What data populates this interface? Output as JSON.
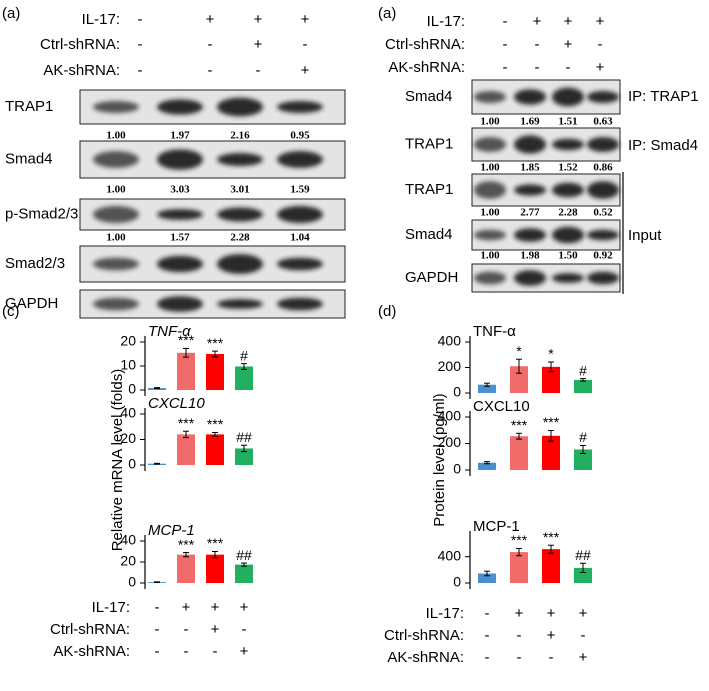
{
  "panel_a": {
    "label": "(a)",
    "conditions": [
      {
        "name": "IL-17:",
        "signs": [
          "-",
          "+",
          "+",
          "+"
        ]
      },
      {
        "name": "Ctrl-shRNA:",
        "signs": [
          "-",
          "-",
          "+",
          "-"
        ]
      },
      {
        "name": "AK-shRNA:",
        "signs": [
          "-",
          "-",
          "-",
          "+"
        ]
      }
    ],
    "blots": [
      {
        "name": "TRAP1",
        "quant": [
          "1.00",
          "1.97",
          "2.16",
          "0.95"
        ]
      },
      {
        "name": "Smad4",
        "quant": [
          "1.00",
          "3.03",
          "3.01",
          "1.59"
        ]
      },
      {
        "name": "p-Smad2/3",
        "quant": [
          "1.00",
          "1.57",
          "2.28",
          "1.04"
        ]
      },
      {
        "name": "Smad2/3"
      },
      {
        "name": "GAPDH"
      }
    ]
  },
  "panel_b": {
    "label": "(a)",
    "conditions": [
      {
        "name": "IL-17:",
        "signs": [
          "-",
          "+",
          "+",
          "+"
        ]
      },
      {
        "name": "Ctrl-shRNA:",
        "signs": [
          "-",
          "-",
          "+",
          "-"
        ]
      },
      {
        "name": "AK-shRNA:",
        "signs": [
          "-",
          "-",
          "-",
          "+"
        ]
      }
    ],
    "blots": [
      {
        "name": "Smad4",
        "quant": [
          "1.00",
          "1.69",
          "1.51",
          "0.63"
        ]
      },
      {
        "name": "TRAP1",
        "quant": [
          "1.00",
          "1.85",
          "1.52",
          "0.86"
        ]
      },
      {
        "name": "TRAP1",
        "quant": [
          "1.00",
          "2.77",
          "2.28",
          "0.52"
        ]
      },
      {
        "name": "Smad4",
        "quant": [
          "1.00",
          "1.98",
          "1.50",
          "0.92"
        ]
      },
      {
        "name": "GAPDH"
      }
    ],
    "groups": [
      "IP: TRAP1",
      "IP: Smad4",
      "Input"
    ]
  },
  "panel_c": {
    "label": "(c)",
    "y_label": "Relative mRNA level (folds)",
    "conditions": [
      {
        "name": "IL-17:",
        "signs": [
          "-",
          "+",
          "+",
          "+"
        ]
      },
      {
        "name": "Ctrl-shRNA:",
        "signs": [
          "-",
          "-",
          "+",
          "-"
        ]
      },
      {
        "name": "AK-shRNA:",
        "signs": [
          "-",
          "-",
          "-",
          "+"
        ]
      }
    ]
  },
  "panel_d": {
    "label": "(d)",
    "y_label": "Protein level (pg/ml)",
    "conditions": [
      {
        "name": "IL-17:",
        "signs": [
          "-",
          "+",
          "+",
          "+"
        ]
      },
      {
        "name": "Ctrl-shRNA:",
        "signs": [
          "-",
          "-",
          "+",
          "-"
        ]
      },
      {
        "name": "AK-shRNA:",
        "signs": [
          "-",
          "-",
          "-",
          "+"
        ]
      }
    ]
  },
  "chart_data": [
    {
      "type": "bar",
      "title": "TNF-α",
      "title_italic": true,
      "categories": [
        null,
        null,
        null,
        null
      ],
      "values": [
        0.8,
        15.5,
        15,
        9.8
      ],
      "errors": [
        0.2,
        1.8,
        1.2,
        1.2
      ],
      "annotations": [
        null,
        "***",
        "***",
        "#"
      ],
      "colors": [
        "#4a90d0",
        "#f26b6b",
        "#ff0000",
        "#22b060"
      ],
      "ylim": [
        0,
        20
      ],
      "yticks": [
        0,
        10,
        20
      ]
    },
    {
      "type": "bar",
      "title": "CXCL10",
      "title_italic": true,
      "categories": [
        null,
        null,
        null,
        null
      ],
      "values": [
        1,
        24,
        24,
        13
      ],
      "errors": [
        0.3,
        2.5,
        1.5,
        2.5
      ],
      "annotations": [
        null,
        "***",
        "***",
        "##"
      ],
      "colors": [
        "#4a90d0",
        "#f26b6b",
        "#ff0000",
        "#22b060"
      ],
      "ylim": [
        0,
        40
      ],
      "yticks": [
        0,
        20,
        40
      ]
    },
    {
      "type": "bar",
      "title": "MCP-1",
      "title_italic": true,
      "categories": [
        null,
        null,
        null,
        null
      ],
      "values": [
        0.8,
        27,
        27,
        17.5
      ],
      "errors": [
        0.3,
        2,
        3,
        1.5
      ],
      "annotations": [
        null,
        "***",
        "***",
        "##"
      ],
      "colors": [
        "#4a90d0",
        "#f26b6b",
        "#ff0000",
        "#22b060"
      ],
      "ylim": [
        0,
        40
      ],
      "yticks": [
        0,
        20,
        40
      ]
    },
    {
      "type": "bar",
      "title": "TNF-α",
      "title_italic": false,
      "categories": [
        null,
        null,
        null,
        null
      ],
      "values": [
        65,
        210,
        205,
        103
      ],
      "errors": [
        12,
        55,
        38,
        10
      ],
      "annotations": [
        null,
        "*",
        "*",
        "#"
      ],
      "colors": [
        "#4a90d0",
        "#f26b6b",
        "#ff0000",
        "#22b060"
      ],
      "ylim": [
        0,
        400
      ],
      "yticks": [
        0,
        200,
        400
      ]
    },
    {
      "type": "bar",
      "title": "CXCL10",
      "title_italic": false,
      "categories": [
        null,
        null,
        null,
        null
      ],
      "values": [
        55,
        255,
        258,
        155
      ],
      "errors": [
        8,
        22,
        40,
        30
      ],
      "annotations": [
        null,
        "***",
        "***",
        "#"
      ],
      "colors": [
        "#4a90d0",
        "#f26b6b",
        "#ff0000",
        "#22b060"
      ],
      "ylim": [
        0,
        400
      ],
      "yticks": [
        0,
        200,
        400
      ]
    },
    {
      "type": "bar",
      "title": "MCP-1",
      "title_italic": false,
      "categories": [
        null,
        null,
        null,
        null
      ],
      "values": [
        145,
        470,
        515,
        230
      ],
      "errors": [
        35,
        55,
        60,
        70
      ],
      "annotations": [
        null,
        "***",
        "***",
        "##"
      ],
      "colors": [
        "#4a90d0",
        "#f26b6b",
        "#ff0000",
        "#22b060"
      ],
      "ylim": [
        0,
        700
      ],
      "yticks": [
        0,
        400
      ]
    }
  ]
}
